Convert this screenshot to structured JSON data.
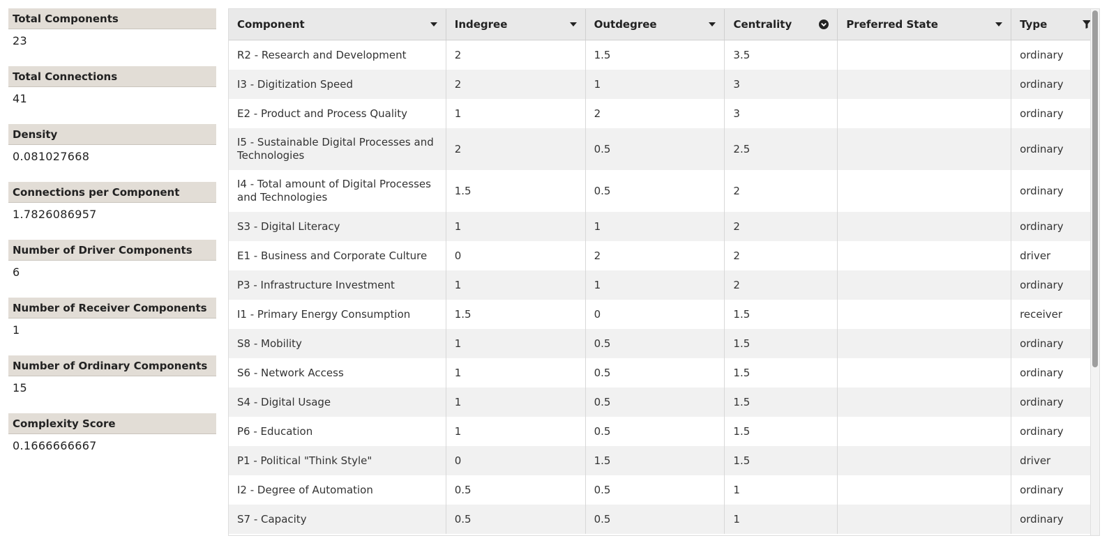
{
  "stats": [
    {
      "label": "Total Components",
      "value": "23"
    },
    {
      "label": "Total Connections",
      "value": "41"
    },
    {
      "label": "Density",
      "value": "0.081027668"
    },
    {
      "label": "Connections per Component",
      "value": "1.7826086957"
    },
    {
      "label": "Number of Driver Components",
      "value": "6"
    },
    {
      "label": "Number of Receiver Components",
      "value": "1"
    },
    {
      "label": "Number of Ordinary Components",
      "value": "15"
    },
    {
      "label": "Complexity Score",
      "value": "0.1666666667"
    }
  ],
  "table": {
    "columns": [
      {
        "label": "Component",
        "icon": "caret-down-icon"
      },
      {
        "label": "Indegree",
        "icon": "caret-down-icon"
      },
      {
        "label": "Outdegree",
        "icon": "caret-down-icon"
      },
      {
        "label": "Centrality",
        "icon": "sort-descending-circle-icon"
      },
      {
        "label": "Preferred State",
        "icon": "caret-down-icon"
      },
      {
        "label": "Type",
        "icon": "filter-icon"
      }
    ],
    "rows": [
      {
        "component": "R2 - Research and Development",
        "indegree": "2",
        "outdegree": "1.5",
        "centrality": "3.5",
        "preferred_state": "",
        "type": "ordinary"
      },
      {
        "component": "I3 - Digitization Speed",
        "indegree": "2",
        "outdegree": "1",
        "centrality": "3",
        "preferred_state": "",
        "type": "ordinary"
      },
      {
        "component": "E2 - Product and Process Quality",
        "indegree": "1",
        "outdegree": "2",
        "centrality": "3",
        "preferred_state": "",
        "type": "ordinary"
      },
      {
        "component": "I5 - Sustainable Digital Processes and Technologies",
        "indegree": "2",
        "outdegree": "0.5",
        "centrality": "2.5",
        "preferred_state": "",
        "type": "ordinary"
      },
      {
        "component": "I4 - Total amount of Digital Processes and Technologies",
        "indegree": "1.5",
        "outdegree": "0.5",
        "centrality": "2",
        "preferred_state": "",
        "type": "ordinary"
      },
      {
        "component": "S3 - Digital Literacy",
        "indegree": "1",
        "outdegree": "1",
        "centrality": "2",
        "preferred_state": "",
        "type": "ordinary"
      },
      {
        "component": "E1 - Business and Corporate Culture",
        "indegree": "0",
        "outdegree": "2",
        "centrality": "2",
        "preferred_state": "",
        "type": "driver"
      },
      {
        "component": "P3 - Infrastructure Investment",
        "indegree": "1",
        "outdegree": "1",
        "centrality": "2",
        "preferred_state": "",
        "type": "ordinary"
      },
      {
        "component": "I1 - Primary Energy Consumption",
        "indegree": "1.5",
        "outdegree": "0",
        "centrality": "1.5",
        "preferred_state": "",
        "type": "receiver"
      },
      {
        "component": "S8 - Mobility",
        "indegree": "1",
        "outdegree": "0.5",
        "centrality": "1.5",
        "preferred_state": "",
        "type": "ordinary"
      },
      {
        "component": "S6 - Network Access",
        "indegree": "1",
        "outdegree": "0.5",
        "centrality": "1.5",
        "preferred_state": "",
        "type": "ordinary"
      },
      {
        "component": "S4 - Digital Usage",
        "indegree": "1",
        "outdegree": "0.5",
        "centrality": "1.5",
        "preferred_state": "",
        "type": "ordinary"
      },
      {
        "component": "P6 - Education",
        "indegree": "1",
        "outdegree": "0.5",
        "centrality": "1.5",
        "preferred_state": "",
        "type": "ordinary"
      },
      {
        "component": "P1 - Political \"Think Style\"",
        "indegree": "0",
        "outdegree": "1.5",
        "centrality": "1.5",
        "preferred_state": "",
        "type": "driver"
      },
      {
        "component": "I2 - Degree of Automation",
        "indegree": "0.5",
        "outdegree": "0.5",
        "centrality": "1",
        "preferred_state": "",
        "type": "ordinary"
      },
      {
        "component": "S7 - Capacity",
        "indegree": "0.5",
        "outdegree": "0.5",
        "centrality": "1",
        "preferred_state": "",
        "type": "ordinary"
      }
    ]
  }
}
